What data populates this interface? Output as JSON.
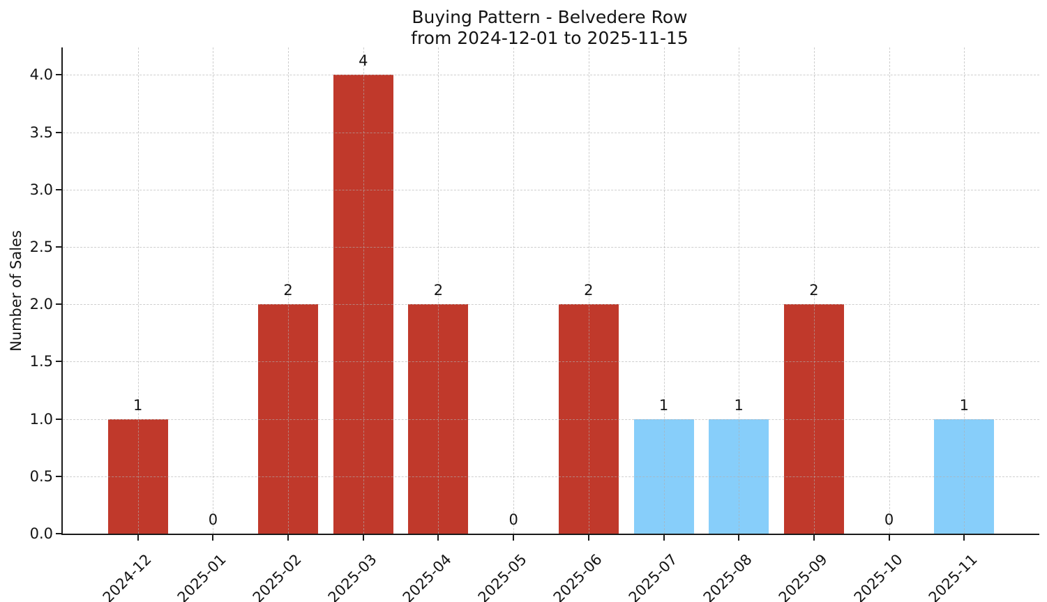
{
  "chart_data": {
    "type": "bar",
    "title": "Buying Pattern - Belvedere Row",
    "subtitle": "from 2024-12-01 to 2025-11-15",
    "xlabel": "",
    "ylabel": "Number of Sales",
    "categories": [
      "2024-12",
      "2025-01",
      "2025-02",
      "2025-03",
      "2025-04",
      "2025-05",
      "2025-06",
      "2025-07",
      "2025-08",
      "2025-09",
      "2025-10",
      "2025-11"
    ],
    "values": [
      1,
      0,
      2,
      4,
      2,
      0,
      2,
      1,
      1,
      2,
      0,
      1
    ],
    "value_labels": [
      "1",
      "0",
      "2",
      "4",
      "2",
      "0",
      "2",
      "1",
      "1",
      "2",
      "0",
      "1"
    ],
    "bar_colors": [
      "#c0392b",
      "#c0392b",
      "#c0392b",
      "#c0392b",
      "#c0392b",
      "#c0392b",
      "#c0392b",
      "#87cefa",
      "#87cefa",
      "#c0392b",
      "#c0392b",
      "#87cefa"
    ],
    "y_tick_labels": [
      "0.0",
      "0.5",
      "1.0",
      "1.5",
      "2.0",
      "2.5",
      "3.0",
      "3.5",
      "4.0"
    ],
    "y_tick_values": [
      0,
      0.5,
      1,
      1.5,
      2,
      2.5,
      3,
      3.5,
      4
    ],
    "ylim": [
      0,
      4.24
    ],
    "grid": "dashed, drawn above bars",
    "legend": "none",
    "accent_colors": {
      "red_bar": "#c0392b",
      "blue_bar": "#87cefa",
      "spine": "#1a1a1a"
    }
  }
}
